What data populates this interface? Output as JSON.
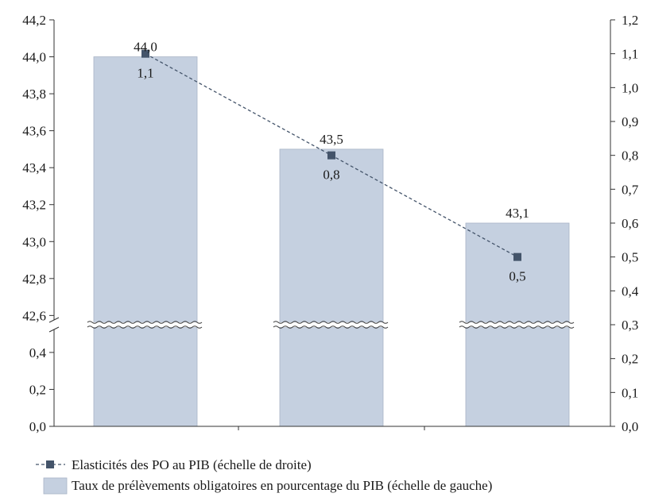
{
  "chart_data": {
    "type": "bar",
    "categories": [
      "",
      "",
      ""
    ],
    "series": [
      {
        "name": "Taux de prélèvements obligatoires en pourcentage du PIB (échelle de gauche)",
        "kind": "bar",
        "axis": "left",
        "values": [
          44.0,
          43.5,
          43.1
        ],
        "labels": [
          "44,0",
          "43,5",
          "43,1"
        ],
        "color": "#c5d0e0"
      },
      {
        "name": "Elasticités des PO au PIB (échelle de droite)",
        "kind": "line",
        "axis": "right",
        "values": [
          1.1,
          0.8,
          0.5
        ],
        "labels": [
          "1,1",
          "0,8",
          "0,5"
        ],
        "color": "#44546a",
        "line_style": "dashed",
        "marker": "square"
      }
    ],
    "left_axis": {
      "broken": true,
      "lower_ticks": [
        "0,0",
        "0,2",
        "0,4"
      ],
      "upper_ticks": [
        "42,6",
        "42,8",
        "43,0",
        "43,2",
        "43,4",
        "43,6",
        "43,8",
        "44,0",
        "44,2"
      ],
      "lower_range": [
        0,
        0.5
      ],
      "upper_range": [
        42.55,
        44.2
      ]
    },
    "right_axis": {
      "ylim": [
        0,
        1.2
      ],
      "ticks": [
        "0,0",
        "0,1",
        "0,2",
        "0,3",
        "0,4",
        "0,5",
        "0,6",
        "0,7",
        "0,8",
        "0,9",
        "1,0",
        "1,1",
        "1,2"
      ]
    },
    "grid": false,
    "legend_position": "bottom"
  }
}
